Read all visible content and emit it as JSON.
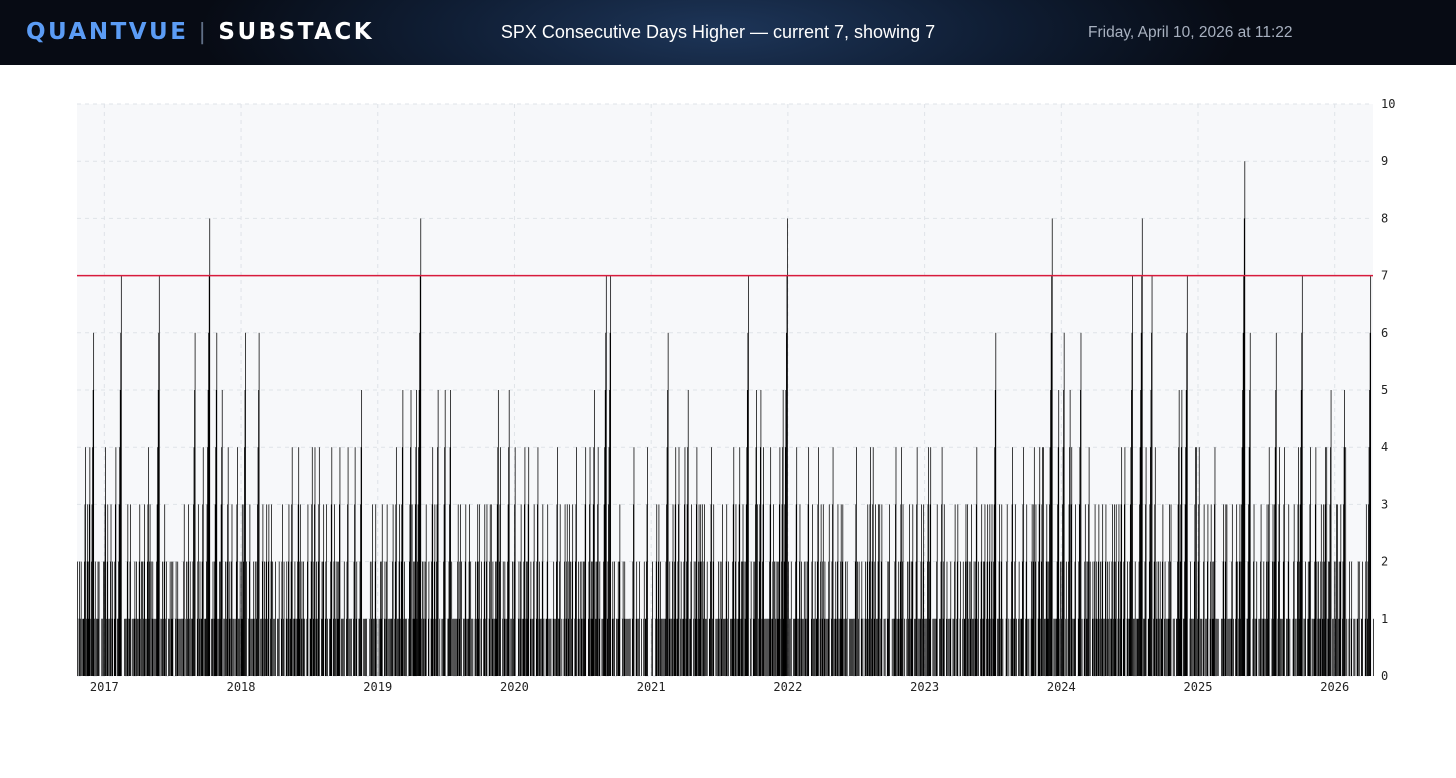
{
  "header": {
    "brand_left": "QUANTVUE",
    "brand_separator": "|",
    "brand_right": "SUBSTACK",
    "title": "SPX Consecutive Days Higher — current 7, showing 7",
    "date": "Friday, April 10, 2026 at 11:22"
  },
  "colors": {
    "brand_accent": "#5b9cf5",
    "bars": "#000000",
    "threshold_line": "#d81b3c",
    "plot_background": "#f7f8fa",
    "grid": "#dfe3e8"
  },
  "chart_data": {
    "type": "bar",
    "title": "SPX Consecutive Days Higher — current 7, showing 7",
    "xlabel": "",
    "ylabel": "",
    "y_axis_side": "right",
    "ylim": [
      0,
      10
    ],
    "yticks": [
      0,
      1,
      2,
      3,
      4,
      5,
      6,
      7,
      8,
      9,
      10
    ],
    "xlim": [
      2016.8,
      2026.28
    ],
    "xticks": [
      {
        "value": 2017,
        "label": "2017"
      },
      {
        "value": 2018,
        "label": "2018"
      },
      {
        "value": 2019,
        "label": "2019"
      },
      {
        "value": 2020,
        "label": "2020"
      },
      {
        "value": 2021,
        "label": "2021"
      },
      {
        "value": 2022,
        "label": "2022"
      },
      {
        "value": 2023,
        "label": "2023"
      },
      {
        "value": 2024,
        "label": "2024"
      },
      {
        "value": 2025,
        "label": "2025"
      },
      {
        "value": 2026,
        "label": "2026"
      }
    ],
    "threshold": {
      "value": 7,
      "label": "current 7"
    },
    "grid": true,
    "current_value": 7,
    "series": [
      {
        "name": "Consecutive days higher",
        "peaks": [
          [
            2016.8,
            2
          ],
          [
            2016.86,
            4
          ],
          [
            2016.89,
            4
          ],
          [
            2016.92,
            6
          ],
          [
            2016.96,
            2
          ],
          [
            2016.99,
            2
          ],
          [
            2017.08,
            4
          ],
          [
            2017.12,
            7
          ],
          [
            2017.19,
            3
          ],
          [
            2017.27,
            2
          ],
          [
            2017.33,
            3
          ],
          [
            2017.4,
            7
          ],
          [
            2017.5,
            2
          ],
          [
            2017.58,
            3
          ],
          [
            2017.66,
            6
          ],
          [
            2017.72,
            4
          ],
          [
            2017.77,
            8
          ],
          [
            2017.82,
            6
          ],
          [
            2017.86,
            5
          ],
          [
            2017.97,
            4
          ],
          [
            2018.03,
            6
          ],
          [
            2018.13,
            6
          ],
          [
            2018.22,
            3
          ],
          [
            2018.3,
            3
          ],
          [
            2018.37,
            4
          ],
          [
            2018.43,
            3
          ],
          [
            2018.52,
            4
          ],
          [
            2018.6,
            3
          ],
          [
            2018.66,
            4
          ],
          [
            2018.72,
            4
          ],
          [
            2018.78,
            4
          ],
          [
            2018.83,
            4
          ],
          [
            2018.88,
            5
          ],
          [
            2018.96,
            3
          ],
          [
            2019.03,
            3
          ],
          [
            2019.11,
            3
          ],
          [
            2019.18,
            5
          ],
          [
            2019.24,
            5
          ],
          [
            2019.29,
            7
          ],
          [
            2019.31,
            8
          ],
          [
            2019.35,
            3
          ],
          [
            2019.44,
            5
          ],
          [
            2019.49,
            5
          ],
          [
            2019.53,
            5
          ],
          [
            2019.6,
            3
          ],
          [
            2019.67,
            3
          ],
          [
            2019.74,
            3
          ],
          [
            2019.82,
            3
          ],
          [
            2019.88,
            5
          ],
          [
            2019.96,
            5
          ],
          [
            2020.1,
            4
          ],
          [
            2020.24,
            3
          ],
          [
            2020.33,
            3
          ],
          [
            2020.4,
            3
          ],
          [
            2020.45,
            4
          ],
          [
            2020.52,
            4
          ],
          [
            2020.58,
            5
          ],
          [
            2020.61,
            4
          ],
          [
            2020.67,
            7
          ],
          [
            2020.7,
            7
          ],
          [
            2020.77,
            3
          ],
          [
            2020.87,
            4
          ],
          [
            2020.97,
            4
          ],
          [
            2021.04,
            3
          ],
          [
            2021.12,
            6
          ],
          [
            2021.2,
            4
          ],
          [
            2021.27,
            5
          ],
          [
            2021.36,
            3
          ],
          [
            2021.44,
            4
          ],
          [
            2021.52,
            3
          ],
          [
            2021.6,
            4
          ],
          [
            2021.67,
            3
          ],
          [
            2021.71,
            7
          ],
          [
            2021.77,
            5
          ],
          [
            2021.8,
            5
          ],
          [
            2021.89,
            3
          ],
          [
            2021.94,
            4
          ],
          [
            2021.97,
            7
          ],
          [
            2021.99,
            7
          ],
          [
            2021.994,
            8
          ],
          [
            2022.06,
            4
          ],
          [
            2022.15,
            4
          ],
          [
            2022.22,
            4
          ],
          [
            2022.3,
            3
          ],
          [
            2022.4,
            3
          ],
          [
            2022.5,
            4
          ],
          [
            2022.58,
            3
          ],
          [
            2022.66,
            3
          ],
          [
            2022.74,
            3
          ],
          [
            2022.84,
            3
          ],
          [
            2022.91,
            3
          ],
          [
            2023.04,
            4
          ],
          [
            2023.14,
            3
          ],
          [
            2023.22,
            3
          ],
          [
            2023.3,
            3
          ],
          [
            2023.38,
            4
          ],
          [
            2023.44,
            3
          ],
          [
            2023.52,
            6
          ],
          [
            2023.6,
            3
          ],
          [
            2023.66,
            3
          ],
          [
            2023.72,
            4
          ],
          [
            2023.8,
            4
          ],
          [
            2023.86,
            4
          ],
          [
            2023.91,
            5
          ],
          [
            2023.93,
            8
          ],
          [
            2023.98,
            5
          ],
          [
            2024.02,
            6
          ],
          [
            2024.06,
            5
          ],
          [
            2024.1,
            3
          ],
          [
            2024.14,
            6
          ],
          [
            2024.2,
            4
          ],
          [
            2024.3,
            3
          ],
          [
            2024.4,
            3
          ],
          [
            2024.44,
            4
          ],
          [
            2024.52,
            7
          ],
          [
            2024.58,
            7
          ],
          [
            2024.59,
            8
          ],
          [
            2024.66,
            7
          ],
          [
            2024.74,
            3
          ],
          [
            2024.8,
            3
          ],
          [
            2024.86,
            5
          ],
          [
            2024.88,
            5
          ],
          [
            2024.92,
            7
          ],
          [
            2024.98,
            4
          ],
          [
            2025.04,
            3
          ],
          [
            2025.12,
            4
          ],
          [
            2025.2,
            3
          ],
          [
            2025.28,
            3
          ],
          [
            2025.33,
            7
          ],
          [
            2025.34,
            9
          ],
          [
            2025.38,
            6
          ],
          [
            2025.46,
            3
          ],
          [
            2025.52,
            4
          ],
          [
            2025.57,
            6
          ],
          [
            2025.66,
            3
          ],
          [
            2025.7,
            3
          ],
          [
            2025.74,
            6
          ],
          [
            2025.76,
            7
          ],
          [
            2025.82,
            4
          ],
          [
            2025.86,
            4
          ],
          [
            2025.9,
            3
          ],
          [
            2025.93,
            4
          ],
          [
            2025.97,
            5
          ],
          [
            2026.01,
            3
          ],
          [
            2026.04,
            3
          ],
          [
            2026.07,
            5
          ],
          [
            2026.12,
            2
          ],
          [
            2026.17,
            2
          ],
          [
            2026.2,
            2
          ],
          [
            2026.23,
            3
          ],
          [
            2026.26,
            7
          ]
        ]
      }
    ]
  }
}
